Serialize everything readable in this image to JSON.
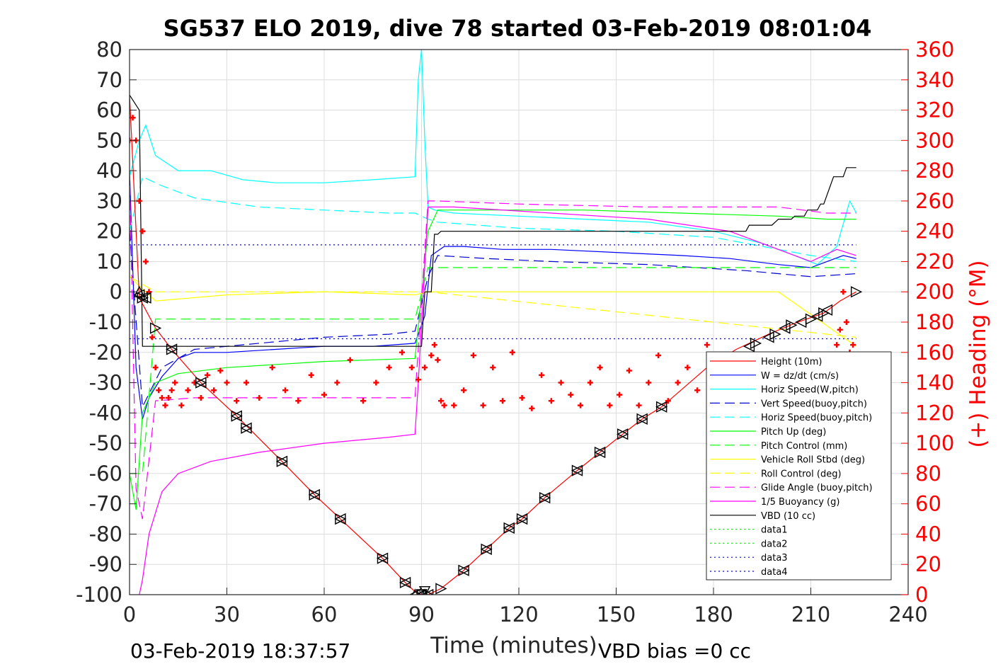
{
  "chart_data": {
    "type": "line",
    "title": "SG537 ELO 2019, dive 78 started 03-Feb-2019 08:01:04",
    "xlabel": "Time (minutes)",
    "ylabel_right": "(+) Heading (°M)",
    "xlim": [
      0,
      240
    ],
    "ylim": [
      -100,
      80
    ],
    "ylim_right": [
      0,
      360
    ],
    "xticks": [
      "0",
      "30",
      "60",
      "90",
      "120",
      "150",
      "180",
      "210",
      "240"
    ],
    "yticks": [
      "80",
      "70",
      "60",
      "50",
      "40",
      "30",
      "20",
      "10",
      "0",
      "-10",
      "-20",
      "-30",
      "-40",
      "-50",
      "-60",
      "-70",
      "-80",
      "-90",
      "-100"
    ],
    "yticks_right": [
      "360",
      "340",
      "320",
      "300",
      "280",
      "260",
      "240",
      "220",
      "200",
      "180",
      "160",
      "140",
      "120",
      "100",
      "80",
      "60",
      "40",
      "20",
      "0"
    ],
    "grid": true,
    "legend_position": "bottom-right",
    "footer_left": "03-Feb-2019 18:37:57",
    "footer_right": "VBD bias =0 cc",
    "series": [
      {
        "name": "Height (10m)",
        "color": "#ff0000",
        "style": "solid",
        "x": [
          0,
          3,
          8,
          13,
          22,
          33,
          47,
          57,
          65,
          78,
          85,
          88,
          90,
          92,
          96,
          103,
          110,
          117,
          121,
          128,
          138,
          145,
          152,
          158,
          164,
          178,
          187,
          197,
          206,
          214,
          219,
          224
        ],
        "y": [
          65,
          -2,
          -12,
          -19,
          -30,
          -41,
          -56,
          -67,
          -75,
          -88,
          -96,
          -99,
          -100,
          -100,
          -98,
          -92,
          -85,
          -78,
          -75,
          -68,
          -59,
          -53,
          -47,
          -42,
          -38,
          -25,
          -19,
          -14,
          -10,
          -7,
          -3,
          0
        ]
      },
      {
        "name": "W = dz/dt (cm/s)",
        "color": "#0000ff",
        "style": "solid",
        "x": [
          0,
          2,
          4,
          6,
          10,
          15,
          20,
          30,
          45,
          60,
          75,
          88,
          91,
          93,
          97,
          103,
          115,
          130,
          150,
          170,
          185,
          200,
          210,
          215,
          220,
          224
        ],
        "y": [
          40,
          -25,
          -42,
          -35,
          -28,
          -22,
          -20,
          -20,
          -19,
          -18,
          -18,
          -17,
          -8,
          12,
          15,
          15,
          14,
          14,
          13,
          12,
          11,
          9,
          8,
          10,
          12,
          11
        ]
      },
      {
        "name": "Horiz Speed(W,pitch)",
        "color": "#00ffff",
        "style": "solid",
        "x": [
          0,
          3,
          5,
          8,
          15,
          25,
          35,
          45,
          60,
          75,
          88,
          89,
          90,
          91,
          92,
          94,
          100,
          120,
          140,
          160,
          180,
          195,
          205,
          212,
          218,
          222,
          224
        ],
        "y": [
          38,
          50,
          55,
          45,
          40,
          40,
          37,
          36,
          36,
          37,
          38,
          70,
          80,
          50,
          28,
          27,
          26,
          25,
          24,
          23,
          20,
          16,
          12,
          9,
          15,
          30,
          26
        ]
      },
      {
        "name": "Vert Speed(buoy,pitch)",
        "color": "#0000cc",
        "style": "dashed",
        "x": [
          0,
          4,
          10,
          20,
          40,
          60,
          80,
          88,
          92,
          95,
          110,
          130,
          160,
          190,
          210,
          224
        ],
        "y": [
          20,
          -38,
          -25,
          -19,
          -17,
          -15,
          -14,
          -13,
          5,
          12,
          11,
          10,
          9,
          7,
          5,
          6
        ]
      },
      {
        "name": "Horiz Speed(buoy,pitch)",
        "color": "#00ffff",
        "style": "dashed",
        "x": [
          0,
          4,
          10,
          20,
          40,
          60,
          80,
          88,
          92,
          95,
          120,
          150,
          180,
          200,
          210,
          224
        ],
        "y": [
          20,
          38,
          35,
          31,
          28,
          27,
          26,
          26,
          24,
          23,
          21,
          20,
          18,
          14,
          12,
          10
        ]
      },
      {
        "name": "Pitch Up (deg)",
        "color": "#00ff00",
        "style": "solid",
        "x": [
          0,
          2,
          4,
          8,
          15,
          30,
          60,
          88,
          92,
          95,
          110,
          140,
          170,
          200,
          215,
          224
        ],
        "y": [
          -60,
          -72,
          -40,
          -30,
          -27,
          -25,
          -23,
          -22,
          20,
          27,
          27,
          27,
          26,
          25,
          24,
          24
        ]
      },
      {
        "name": "Pitch Control (mm)",
        "color": "#00ff00",
        "style": "dashed",
        "x": [
          0,
          4,
          8,
          88,
          92,
          224
        ],
        "y": [
          -60,
          -60,
          -9,
          -9,
          8,
          8
        ]
      },
      {
        "name": "Vehicle Roll Stbd (deg)",
        "color": "#ffff00",
        "style": "solid",
        "x": [
          0,
          8,
          30,
          60,
          88,
          92,
          120,
          160,
          200,
          224
        ],
        "y": [
          5,
          -3,
          -1,
          0,
          -1,
          0,
          0,
          0,
          0,
          -18
        ]
      },
      {
        "name": "Roll Control (deg)",
        "color": "#ffff00",
        "style": "dashed",
        "x": [
          0,
          8,
          88,
          92,
          224
        ],
        "y": [
          5,
          0,
          0,
          0,
          -15
        ]
      },
      {
        "name": "Glide Angle (buoy,pitch)",
        "color": "#ff00ff",
        "style": "dashed",
        "x": [
          0,
          2,
          4,
          8,
          20,
          60,
          88,
          92,
          95,
          120,
          160,
          200,
          215,
          224
        ],
        "y": [
          40,
          -65,
          -75,
          -36,
          -35,
          -35,
          -35,
          30,
          30,
          29,
          28,
          28,
          26,
          26
        ]
      },
      {
        "name": "1/5 Buoyancy (g)",
        "color": "#ff00ff",
        "style": "solid",
        "x": [
          3,
          4,
          6,
          10,
          15,
          25,
          40,
          60,
          80,
          88,
          89,
          92,
          100,
          130,
          160,
          185,
          200,
          210,
          218,
          224
        ],
        "y": [
          -100,
          -95,
          -80,
          -66,
          -60,
          -56,
          -53,
          -50,
          -48,
          -47,
          -30,
          28,
          28,
          26,
          24,
          20,
          14,
          10,
          14,
          12
        ]
      },
      {
        "name": "VBD (10 cc)",
        "color": "#000000",
        "style": "solid",
        "x": [
          0,
          3,
          4,
          90,
          91,
          93,
          94,
          95,
          96,
          190,
          191,
          198,
          200,
          204,
          205,
          208,
          209,
          212,
          213,
          214,
          216,
          217,
          220,
          221,
          224
        ],
        "y": [
          65,
          60,
          -18,
          -18,
          0,
          0,
          19,
          19,
          20,
          20,
          22,
          22,
          24,
          24,
          25,
          25,
          27,
          27,
          29,
          29,
          35,
          38,
          38,
          41,
          41
        ]
      },
      {
        "name": "data1",
        "color": "#00ff00",
        "style": "dotted",
        "x": [],
        "y": []
      },
      {
        "name": "data2",
        "color": "#00ff00",
        "style": "dotted",
        "x": [],
        "y": []
      },
      {
        "name": "data3",
        "color": "#0000ff",
        "style": "dotted",
        "x": [
          0,
          224
        ],
        "y": [
          15.5,
          15.5
        ]
      },
      {
        "name": "data4",
        "color": "#0000ff",
        "style": "dotted",
        "x": [
          0,
          224
        ],
        "y": [
          -15.5,
          -15.5
        ]
      }
    ],
    "heading": {
      "color": "#ff0000",
      "marker": "+",
      "x": [
        0,
        1,
        2,
        3,
        4,
        5,
        6,
        7,
        8,
        9,
        10,
        11,
        12,
        13,
        14,
        16,
        18,
        20,
        22,
        24,
        26,
        28,
        30,
        33,
        36,
        40,
        44,
        48,
        52,
        56,
        60,
        64,
        68,
        72,
        76,
        80,
        84,
        87,
        89,
        91,
        93,
        94,
        95,
        96,
        97,
        100,
        103,
        106,
        109,
        112,
        115,
        118,
        121,
        124,
        127,
        130,
        133,
        136,
        139,
        142,
        145,
        148,
        151,
        154,
        157,
        160,
        163,
        166,
        169,
        172,
        175,
        178,
        181,
        184,
        187,
        190,
        193,
        196,
        199,
        202,
        205,
        208,
        211,
        214,
        216,
        218,
        219,
        220,
        221,
        222,
        223
      ],
      "y": [
        300,
        315,
        300,
        260,
        240,
        220,
        200,
        170,
        150,
        135,
        130,
        125,
        130,
        135,
        140,
        125,
        135,
        140,
        130,
        145,
        135,
        148,
        140,
        128,
        140,
        130,
        150,
        135,
        128,
        145,
        132,
        140,
        155,
        128,
        140,
        150,
        160,
        150,
        142,
        150,
        158,
        165,
        155,
        128,
        125,
        125,
        135,
        158,
        125,
        150,
        128,
        160,
        130,
        123,
        145,
        128,
        140,
        132,
        125,
        140,
        150,
        125,
        132,
        148,
        125,
        140,
        158,
        128,
        140,
        150,
        135,
        165,
        140,
        158,
        135,
        150,
        140,
        130,
        140,
        135,
        150,
        145,
        155,
        150,
        140,
        165,
        175,
        200,
        180,
        160,
        165
      ]
    },
    "triangles_right": [
      [
        4,
        -2
      ],
      [
        8,
        -12
      ],
      [
        13,
        -19
      ],
      [
        22,
        -30
      ],
      [
        33,
        -41
      ],
      [
        36,
        -45
      ],
      [
        47,
        -56
      ],
      [
        57,
        -67
      ],
      [
        65,
        -75
      ],
      [
        78,
        -88
      ],
      [
        85,
        -96
      ],
      [
        92,
        -100
      ],
      [
        96,
        -98
      ],
      [
        103,
        -92
      ],
      [
        110,
        -85
      ],
      [
        117,
        -78
      ],
      [
        121,
        -75
      ],
      [
        128,
        -68
      ],
      [
        138,
        -59
      ],
      [
        145,
        -53
      ],
      [
        152,
        -47
      ],
      [
        158,
        -42
      ],
      [
        164,
        -38
      ],
      [
        193,
        -17
      ],
      [
        199,
        -14
      ],
      [
        204,
        -11
      ],
      [
        210,
        -9
      ],
      [
        214,
        -7
      ],
      [
        224,
        0
      ]
    ],
    "triangles_left": [
      [
        3,
        -1
      ],
      [
        4,
        -2
      ],
      [
        5,
        -2
      ],
      [
        13,
        -19
      ],
      [
        22,
        -30
      ],
      [
        33,
        -41
      ],
      [
        36,
        -45
      ],
      [
        47,
        -56
      ],
      [
        57,
        -67
      ],
      [
        65,
        -75
      ],
      [
        78,
        -88
      ],
      [
        85,
        -96
      ],
      [
        88,
        -100
      ],
      [
        90,
        -100
      ],
      [
        92,
        -100
      ],
      [
        103,
        -92
      ],
      [
        110,
        -85
      ],
      [
        117,
        -78
      ],
      [
        121,
        -75
      ],
      [
        128,
        -68
      ],
      [
        138,
        -59
      ],
      [
        145,
        -53
      ],
      [
        152,
        -47
      ],
      [
        158,
        -42
      ],
      [
        164,
        -38
      ],
      [
        191,
        -18
      ],
      [
        197,
        -15
      ],
      [
        202,
        -12
      ],
      [
        207,
        -10
      ],
      [
        212,
        -8
      ],
      [
        215,
        -6
      ]
    ],
    "triangles_up": [
      [
        3,
        0
      ],
      [
        88,
        -100
      ],
      [
        91,
        -100
      ]
    ],
    "triangles_down": [
      [
        90,
        -100
      ],
      [
        91,
        -99
      ]
    ]
  }
}
